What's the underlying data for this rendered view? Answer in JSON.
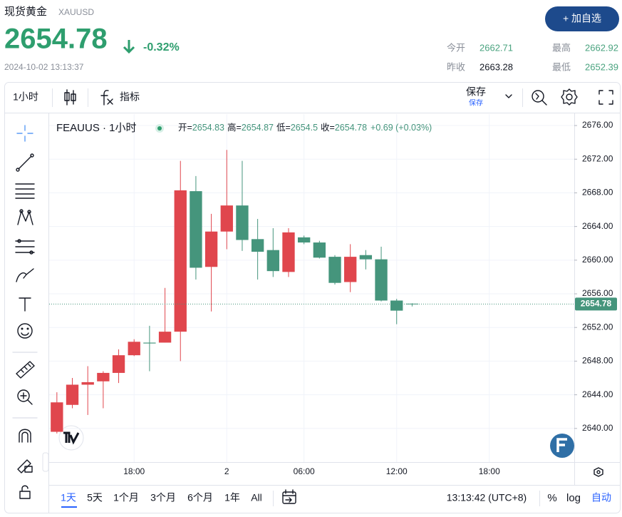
{
  "header": {
    "title": "现货黄金",
    "symbol": "XAUUSD",
    "price": "2654.78",
    "change": "-0.32%",
    "timestamp": "2024-10-02 13:13:37",
    "button": "+ 加自选",
    "stats": [
      {
        "label": "今开",
        "value": "2662.71"
      },
      {
        "label": "最高",
        "value": "2662.92"
      },
      {
        "label": "昨收",
        "value": "2663.28"
      },
      {
        "label": "最低",
        "value": "2652.39"
      }
    ]
  },
  "toolbar": {
    "interval": "1小时",
    "indicators": "指标",
    "save": "保存",
    "save_sub": "保存"
  },
  "chart_data": {
    "type": "candlestick",
    "title": "FEAUUS · 1小时",
    "categories": [
      null,
      null,
      null,
      null,
      null,
      "18:00",
      null,
      null,
      null,
      null,
      null,
      "2",
      null,
      null,
      null,
      null,
      "06:00",
      null,
      null,
      null,
      null,
      null,
      "12:00",
      null,
      null,
      null,
      null,
      null,
      "18:00",
      null,
      null,
      null,
      null,
      null
    ],
    "open": [
      2639.6,
      2642.8,
      2645.2,
      2645.6,
      2646.6,
      2648.7,
      2650.2,
      2650.2,
      2651.5,
      2668.2,
      2659.2,
      2663.4,
      2666.5,
      2662.5,
      2661.2,
      2658.6,
      2662.71,
      2662.1,
      2660.4,
      2657.4,
      2660.6,
      2660.1,
      2655.2,
      2654.83,
      null,
      null,
      null,
      null,
      null,
      null,
      null,
      null,
      null,
      null
    ],
    "high": [
      2644.3,
      2646.0,
      2647.4,
      2646.8,
      2649.4,
      2650.6,
      2652.2,
      2656.7,
      2671.8,
      2670.0,
      2665.5,
      2673.1,
      2671.8,
      2664.9,
      2663.8,
      2663.8,
      2662.92,
      2662.3,
      2660.6,
      2661.9,
      2661.2,
      2661.6,
      2655.4,
      2654.87,
      null,
      null,
      null,
      null,
      null,
      null,
      null,
      null,
      null,
      null
    ],
    "low": [
      2639.4,
      2642.4,
      2641.6,
      2642.4,
      2645.4,
      2648.6,
      2646.8,
      2650.2,
      2648.0,
      2657.7,
      2653.9,
      2661.3,
      2661.1,
      2657.7,
      2658.0,
      2658.0,
      2661.9,
      2660.2,
      2657.1,
      2656.2,
      2658.9,
      2655.1,
      2652.39,
      2654.5,
      null,
      null,
      null,
      null,
      null,
      null,
      null,
      null,
      null,
      null
    ],
    "close": [
      2643.1,
      2645.2,
      2645.5,
      2646.6,
      2648.7,
      2650.3,
      2650.1,
      2651.5,
      2668.3,
      2659.1,
      2663.4,
      2666.5,
      2662.4,
      2661.0,
      2658.7,
      2663.3,
      2662.1,
      2660.3,
      2657.3,
      2660.4,
      2660.1,
      2655.2,
      2654.0,
      2654.78,
      null,
      null,
      null,
      null,
      null,
      null,
      null,
      null,
      null,
      null
    ],
    "up_color": "#e0464d",
    "down_color": "#45957c",
    "ylim": [
      2636.0,
      2677.36
    ],
    "yticks": [
      {
        "value": 2640,
        "label": "2640.00"
      },
      {
        "value": 2644,
        "label": "2644.00"
      },
      {
        "value": 2648,
        "label": "2648.00"
      },
      {
        "value": 2652,
        "label": "2652.00"
      },
      {
        "value": 2656,
        "label": "2656.00"
      },
      {
        "value": 2660,
        "label": "2660.00"
      },
      {
        "value": 2664,
        "label": "2664.00"
      },
      {
        "value": 2668,
        "label": "2668.00"
      },
      {
        "value": 2672,
        "label": "2672.00"
      },
      {
        "value": 2676,
        "label": "2676.00"
      }
    ],
    "grid": true,
    "ohlc_labels": [
      "开=",
      "高=",
      "低=",
      "收="
    ],
    "change": "+0.69 (+0.03%)"
  },
  "footer": {
    "ranges": [
      "1天",
      "5天",
      "1个月",
      "3个月",
      "6个月",
      "1年",
      "All"
    ],
    "time": "13:13:42 (UTC+8)",
    "percent": "%",
    "log": "log",
    "auto": "自动"
  }
}
